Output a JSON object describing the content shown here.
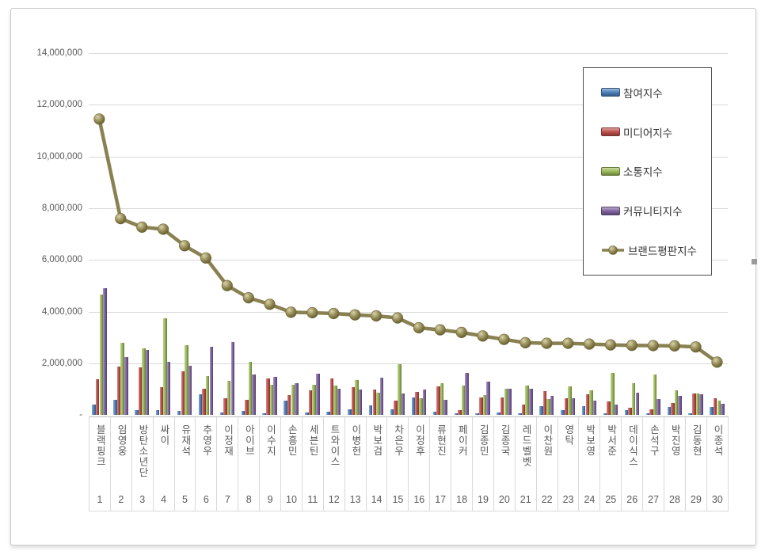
{
  "legend": [
    {
      "label": "참여지수",
      "type": "bar",
      "color": "#4f81bd"
    },
    {
      "label": "미디어지수",
      "type": "bar",
      "color": "#c0504d"
    },
    {
      "label": "소통지수",
      "type": "bar",
      "color": "#9bbb59"
    },
    {
      "label": "커뮤니티지수",
      "type": "bar",
      "color": "#8064a2"
    },
    {
      "label": "브랜드평판지수",
      "type": "line",
      "color": "#948a54"
    }
  ],
  "y_axis": {
    "ticks": [
      {
        "label": "14,000,000",
        "value": 14000000
      },
      {
        "label": "12,000,000",
        "value": 12000000
      },
      {
        "label": "10,000,000",
        "value": 10000000
      },
      {
        "label": "8,000,000",
        "value": 8000000
      },
      {
        "label": "6,000,000",
        "value": 6000000
      },
      {
        "label": "4,000,000",
        "value": 4000000
      },
      {
        "label": "2,000,000",
        "value": 2000000
      },
      {
        "label": "-",
        "value": 0
      }
    ]
  },
  "chart_data": {
    "type": "bar",
    "title": "",
    "xlabel": "",
    "ylabel": "",
    "ylim": [
      0,
      14000000
    ],
    "ytick_step": 2000000,
    "grid": true,
    "legend_position": "right-top",
    "categories": [
      "블랙핑크",
      "임영웅",
      "방탄소년단",
      "싸이",
      "유재석",
      "추영우",
      "이정재",
      "아이브",
      "이수지",
      "손흥민",
      "세븐틴",
      "트와이스",
      "이병헌",
      "박보검",
      "차은우",
      "이정후",
      "류현진",
      "페이커",
      "김종민",
      "김종국",
      "레드벨벳",
      "이찬원",
      "영탁",
      "박보영",
      "박서준",
      "데이식스",
      "손석구",
      "박진영",
      "김동현",
      "이종석"
    ],
    "ranks": [
      "1",
      "2",
      "3",
      "4",
      "5",
      "6",
      "7",
      "8",
      "9",
      "10",
      "11",
      "12",
      "13",
      "14",
      "15",
      "16",
      "17",
      "18",
      "19",
      "20",
      "21",
      "22",
      "23",
      "24",
      "25",
      "26",
      "27",
      "28",
      "29",
      "30"
    ],
    "series": [
      {
        "name": "참여지수",
        "type": "bar",
        "color": "#4f81bd",
        "values": [
          400000,
          600000,
          200000,
          200000,
          160000,
          800000,
          110000,
          170000,
          80000,
          550000,
          120000,
          140000,
          220000,
          390000,
          240000,
          700000,
          140000,
          90000,
          90000,
          110000,
          90000,
          350000,
          210000,
          350000,
          90000,
          190000,
          90000,
          320000,
          60000,
          320000
        ]
      },
      {
        "name": "미디어지수",
        "type": "bar",
        "color": "#c0504d",
        "values": [
          1400000,
          1880000,
          1850000,
          1100000,
          1700000,
          1030000,
          650000,
          600000,
          1430000,
          780000,
          960000,
          1420000,
          1080000,
          980000,
          570000,
          910000,
          1130000,
          200000,
          700000,
          680000,
          400000,
          930000,
          650000,
          810000,
          520000,
          280000,
          240000,
          470000,
          830000,
          670000
        ]
      },
      {
        "name": "소통지수",
        "type": "bar",
        "color": "#9bbb59",
        "values": [
          4660000,
          2800000,
          2600000,
          3760000,
          2700000,
          1520000,
          1340000,
          2050000,
          1190000,
          1180000,
          1190000,
          1160000,
          1370000,
          870000,
          1980000,
          660000,
          1230000,
          1140000,
          790000,
          1030000,
          1160000,
          630000,
          1110000,
          960000,
          1640000,
          1240000,
          1590000,
          960000,
          830000,
          550000
        ]
      },
      {
        "name": "커뮤니티지수",
        "type": "bar",
        "color": "#8064a2",
        "values": [
          4920000,
          2240000,
          2520000,
          2050000,
          1900000,
          2660000,
          2820000,
          1570000,
          1480000,
          1230000,
          1620000,
          1030000,
          1000000,
          1440000,
          830000,
          980000,
          600000,
          1650000,
          1300000,
          1030000,
          1010000,
          760000,
          670000,
          580000,
          400000,
          860000,
          620000,
          760000,
          810000,
          450000
        ]
      },
      {
        "name": "브랜드평판지수",
        "type": "line",
        "color": "#948a54",
        "values": [
          11450000,
          7600000,
          7270000,
          7190000,
          6550000,
          6080000,
          5010000,
          4540000,
          4290000,
          3980000,
          3960000,
          3930000,
          3880000,
          3840000,
          3760000,
          3380000,
          3300000,
          3200000,
          3060000,
          2930000,
          2800000,
          2780000,
          2780000,
          2750000,
          2720000,
          2700000,
          2690000,
          2680000,
          2640000,
          2050000
        ]
      }
    ]
  }
}
